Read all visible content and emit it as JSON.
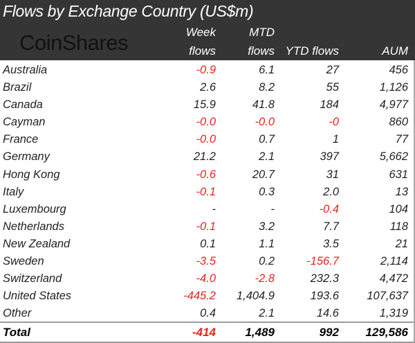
{
  "title": "Flows by Exchange Country (US$m)",
  "logo": "CoinShares",
  "columns": {
    "week_1": "Week",
    "week_2": "flows",
    "mtd_1": "MTD",
    "mtd_2": "flows",
    "ytd": "YTD flows",
    "aum": "AUM"
  },
  "colors": {
    "header_bg": "#353535",
    "negative": "#e8211c"
  },
  "rows": [
    [
      "Australia",
      "-0.9",
      "6.1",
      "27",
      "456"
    ],
    [
      "Brazil",
      "2.6",
      "8.2",
      "55",
      "1,126"
    ],
    [
      "Canada",
      "15.9",
      "41.8",
      "184",
      "4,977"
    ],
    [
      "Cayman",
      "-0.0",
      "-0.0",
      "-0",
      "860"
    ],
    [
      "France",
      "-0.0",
      "0.7",
      "1",
      "77"
    ],
    [
      "Germany",
      "21.2",
      "2.1",
      "397",
      "5,662"
    ],
    [
      "Hong Kong",
      "-0.6",
      "20.7",
      "31",
      "631"
    ],
    [
      "Italy",
      "-0.1",
      "0.3",
      "2.0",
      "13"
    ],
    [
      "Luxembourg",
      "-",
      "-",
      "-0.4",
      "104"
    ],
    [
      "Netherlands",
      "-0.1",
      "3.2",
      "7.7",
      "118"
    ],
    [
      "New Zealand",
      "0.1",
      "1.1",
      "3.5",
      "21"
    ],
    [
      "Sweden",
      "-3.5",
      "0.2",
      "-156.7",
      "2,114"
    ],
    [
      "Switzerland",
      "-4.0",
      "-2.8",
      "232.3",
      "4,472"
    ],
    [
      "United States",
      "-445.2",
      "1,404.9",
      "193.6",
      "107,637"
    ],
    [
      "Other",
      "0.4",
      "2.1",
      "14.6",
      "1,319"
    ]
  ],
  "total": [
    "Total",
    "-414",
    "1,489",
    "992",
    "129,586"
  ]
}
